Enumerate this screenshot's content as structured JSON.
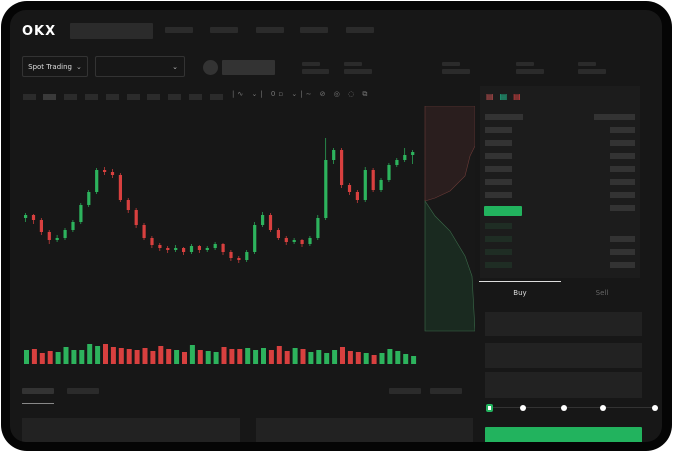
{
  "header": {
    "logo": "OKX"
  },
  "controls": {
    "market_type": "Spot Trading"
  },
  "trade_panel": {
    "buy_tab": "Buy",
    "sell_tab": "Sell",
    "active_tab": "Buy",
    "leverage_slider_value": 0
  },
  "colors": {
    "up": "#2db35d",
    "down": "#d8403f",
    "accent": "#22b35e",
    "background": "#171717"
  },
  "icons": [
    "chevron-down-icon",
    "indicator-icon",
    "draw-line-icon",
    "order-book-both-icon",
    "order-book-bids-icon",
    "order-book-asks-icon"
  ],
  "chart_data": {
    "type": "candlestick",
    "candles": [
      [
        92,
        97,
        88,
        95
      ],
      [
        95,
        96,
        86,
        90
      ],
      [
        90,
        92,
        75,
        78
      ],
      [
        78,
        80,
        66,
        70
      ],
      [
        70,
        75,
        68,
        72
      ],
      [
        72,
        82,
        70,
        80
      ],
      [
        80,
        90,
        78,
        88
      ],
      [
        88,
        107,
        86,
        105
      ],
      [
        105,
        120,
        103,
        118
      ],
      [
        118,
        142,
        116,
        140
      ],
      [
        140,
        143,
        135,
        138
      ],
      [
        138,
        141,
        132,
        135
      ],
      [
        135,
        137,
        108,
        110
      ],
      [
        110,
        112,
        97,
        100
      ],
      [
        100,
        102,
        82,
        85
      ],
      [
        85,
        87,
        70,
        72
      ],
      [
        72,
        74,
        62,
        65
      ],
      [
        65,
        67,
        59,
        62
      ],
      [
        62,
        64,
        57,
        60
      ],
      [
        60,
        65,
        58,
        62
      ],
      [
        62,
        63,
        55,
        58
      ],
      [
        58,
        66,
        56,
        64
      ],
      [
        64,
        65,
        57,
        60
      ],
      [
        60,
        64,
        58,
        62
      ],
      [
        62,
        68,
        60,
        66
      ],
      [
        66,
        67,
        55,
        58
      ],
      [
        58,
        60,
        49,
        52
      ],
      [
        52,
        54,
        47,
        50
      ],
      [
        50,
        60,
        48,
        58
      ],
      [
        58,
        88,
        56,
        85
      ],
      [
        85,
        98,
        83,
        95
      ],
      [
        95,
        97,
        78,
        80
      ],
      [
        80,
        82,
        70,
        72
      ],
      [
        72,
        74,
        65,
        68
      ],
      [
        68,
        72,
        66,
        70
      ],
      [
        70,
        71,
        63,
        66
      ],
      [
        66,
        74,
        64,
        72
      ],
      [
        72,
        95,
        70,
        92
      ],
      [
        92,
        172,
        90,
        150
      ],
      [
        150,
        162,
        146,
        160
      ],
      [
        160,
        162,
        122,
        125
      ],
      [
        125,
        127,
        115,
        118
      ],
      [
        118,
        120,
        107,
        110
      ],
      [
        110,
        143,
        108,
        140
      ],
      [
        140,
        142,
        118,
        120
      ],
      [
        120,
        132,
        118,
        130
      ],
      [
        130,
        147,
        128,
        145
      ],
      [
        145,
        152,
        143,
        150
      ],
      [
        150,
        162,
        148,
        155
      ],
      [
        155,
        160,
        146,
        158
      ]
    ],
    "volume": [
      14,
      15,
      11,
      13,
      12,
      17,
      14,
      14,
      20,
      18,
      20,
      17,
      16,
      15,
      14,
      16,
      13,
      18,
      15,
      14,
      12,
      19,
      14,
      13,
      12,
      17,
      15,
      15,
      16,
      14,
      16,
      14,
      18,
      13,
      16,
      15,
      12,
      14,
      11,
      14,
      17,
      13,
      12,
      11,
      9,
      11,
      15,
      13,
      10,
      8
    ]
  }
}
